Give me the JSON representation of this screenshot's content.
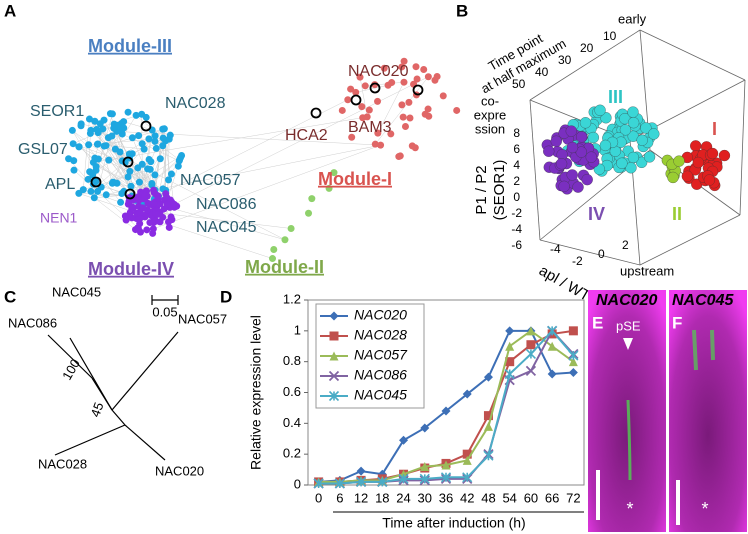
{
  "panel_labels": [
    "A",
    "B",
    "C",
    "D",
    "E",
    "F"
  ],
  "network": {
    "modules": [
      "Module-III",
      "Module-I",
      "Module-IV",
      "Module-II"
    ],
    "genes": [
      "SEOR1",
      "NAC028",
      "GSL07",
      "APL",
      "NAC057",
      "NAC086",
      "NAC045",
      "NEN1",
      "NAC020",
      "BAM3",
      "HCA2"
    ]
  },
  "plot3d": {
    "z_label": [
      "Time point",
      "at half maximum"
    ],
    "z_end": "early",
    "z_ticks": [
      "50",
      "40",
      "30",
      "20",
      "10"
    ],
    "y_label": [
      "co-",
      "expre",
      "ssion"
    ],
    "y_axis": [
      "P1 / P2",
      "(SEOR1)"
    ],
    "y_ticks": [
      "8",
      "6",
      "4",
      "2",
      "0",
      "-2",
      "-4",
      "-6"
    ],
    "x_label": "apl / WT",
    "x_end": "upstream",
    "x_ticks": [
      "-4",
      "-2",
      "0",
      "2"
    ],
    "clusters": [
      "III",
      "I",
      "IV",
      "II"
    ]
  },
  "tree": {
    "leaves": [
      "NAC045",
      "NAC086",
      "NAC057",
      "NAC028",
      "NAC020"
    ],
    "bootstrap": [
      "100",
      "45"
    ],
    "scale": "0.05"
  },
  "chart_data": {
    "type": "line",
    "ylabel": "Relative expression level",
    "xlabel": "Time after induction (h)",
    "categories": [
      "0",
      "6",
      "12",
      "18",
      "24",
      "30",
      "36",
      "42",
      "48",
      "54",
      "60",
      "66",
      "72"
    ],
    "ylim": [
      0,
      1.2
    ],
    "yticks": [
      0,
      0.2,
      0.4,
      0.6,
      0.8,
      1,
      1.2
    ],
    "legend": "upper-left",
    "series": [
      {
        "name": "NAC020",
        "color": "#3d6fb6",
        "marker": "diamond",
        "values": [
          0.02,
          0.03,
          0.09,
          0.07,
          0.29,
          0.37,
          0.48,
          0.59,
          0.7,
          1.0,
          1.0,
          0.72,
          0.73
        ]
      },
      {
        "name": "NAC028",
        "color": "#c0504d",
        "marker": "square",
        "values": [
          0.02,
          0.02,
          0.03,
          0.04,
          0.07,
          0.11,
          0.14,
          0.2,
          0.45,
          0.8,
          0.91,
          0.98,
          1.0
        ]
      },
      {
        "name": "NAC057",
        "color": "#9bbb59",
        "marker": "triangle",
        "values": [
          0.02,
          0.02,
          0.03,
          0.03,
          0.07,
          0.12,
          0.13,
          0.16,
          0.38,
          0.9,
          1.0,
          0.9,
          0.8
        ]
      },
      {
        "name": "NAC086",
        "color": "#8064a2",
        "marker": "cross",
        "values": [
          0.01,
          0.01,
          0.02,
          0.02,
          0.03,
          0.03,
          0.04,
          0.04,
          0.2,
          0.68,
          0.74,
          1.0,
          0.85
        ]
      },
      {
        "name": "NAC045",
        "color": "#4bacc6",
        "marker": "star",
        "values": [
          0.01,
          0.01,
          0.02,
          0.02,
          0.04,
          0.04,
          0.05,
          0.05,
          0.19,
          0.72,
          0.85,
          1.0,
          0.84
        ]
      }
    ]
  },
  "images": {
    "labels": [
      "NAC020",
      "NAC045"
    ],
    "pse": "pSE",
    "stars": [
      "*",
      "*"
    ]
  }
}
